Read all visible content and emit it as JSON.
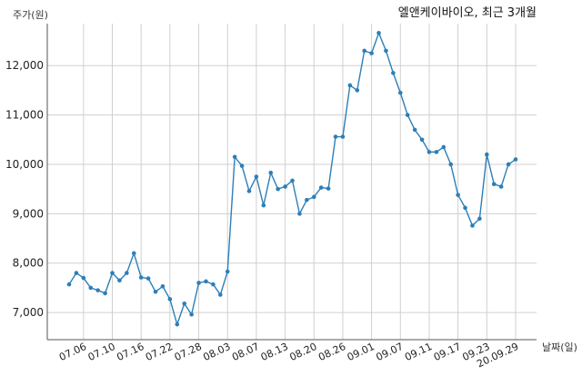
{
  "chart_data": {
    "type": "line",
    "title": "엘앤케이바이오, 최근 3개월",
    "ylabel": "주가(원)",
    "xlabel": "날짜(일)",
    "ylim": [
      6450,
      12850
    ],
    "yticks": [
      7000,
      8000,
      9000,
      10000,
      11000,
      12000
    ],
    "ytick_labels": [
      "7,000",
      "8,000",
      "9,000",
      "10,000",
      "11,000",
      "12,000"
    ],
    "x_tick_labels": [
      "07.06",
      "07.10",
      "07.16",
      "07.22",
      "07.28",
      "08.03",
      "08.07",
      "08.13",
      "08.20",
      "08.26",
      "09.01",
      "09.07",
      "09.11",
      "09.17",
      "09.23",
      "20.09.29"
    ],
    "x_tick_index": [
      2,
      6,
      10,
      14,
      18,
      22,
      26,
      30,
      34,
      38,
      42,
      46,
      50,
      54,
      58,
      62
    ],
    "grid": true,
    "line_color": "#2c7fb8",
    "series": [
      {
        "values": [
          7570,
          7800,
          7700,
          7500,
          7450,
          7390,
          7800,
          7650,
          7800,
          8200,
          7710,
          7690,
          7420,
          7530,
          7270,
          6760,
          7180,
          6960,
          7600,
          7630,
          7570,
          7360,
          7830,
          10150,
          9970,
          9460,
          9750,
          9170,
          9830,
          9500,
          9550,
          9670,
          9000,
          9280,
          9340,
          9530,
          9510,
          10560,
          10560,
          11600,
          11500,
          12300,
          12250,
          12660,
          12300,
          11850,
          11450,
          11000,
          10700,
          10500,
          10250,
          10250,
          10350,
          10000,
          9380,
          9120,
          8760,
          8900,
          10200,
          9600,
          9550,
          10000,
          10100
        ]
      }
    ]
  }
}
